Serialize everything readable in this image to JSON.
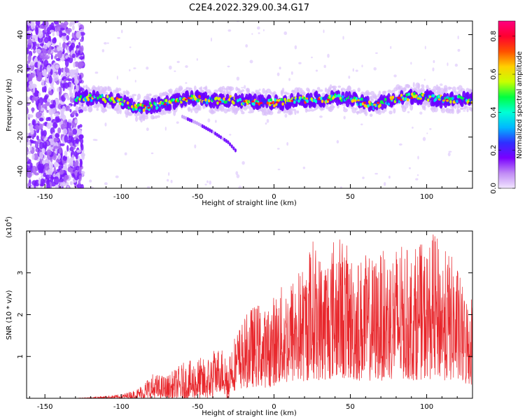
{
  "title": "C2E4.2022.329.00.34.G17",
  "chart_data": [
    {
      "type": "heatmap",
      "xlabel": "Height of straight line (km)",
      "ylabel": "Frequency (Hz)",
      "xlim": [
        -162,
        130
      ],
      "ylim": [
        -50,
        48
      ],
      "xticks": [
        -150,
        -100,
        -50,
        0,
        50,
        100
      ],
      "yticks": [
        -40,
        -20,
        0,
        20,
        40
      ],
      "colorbar": {
        "label": "Normalized spectral amplitude",
        "range": [
          0,
          0.88
        ],
        "ticks": [
          0.0,
          0.2,
          0.4,
          0.6,
          0.8
        ],
        "colormap": [
          "#f2e6ff",
          "#c08af5",
          "#7a00ff",
          "#2f2fff",
          "#00b8ff",
          "#00ffd5",
          "#00ff40",
          "#c8ff00",
          "#ffd000",
          "#ff5000",
          "#ff0030",
          "#ff0080"
        ]
      },
      "main_band": {
        "x_range": [
          -130,
          130
        ],
        "center_hz": [
          [
            -130,
            3
          ],
          [
            -110,
            2.5
          ],
          [
            -100,
            1
          ],
          [
            -90,
            -3
          ],
          [
            -80,
            -2
          ],
          [
            -70,
            0
          ],
          [
            -60,
            2
          ],
          [
            -50,
            2.5
          ],
          [
            -40,
            1.5
          ],
          [
            -30,
            2
          ],
          [
            -20,
            1
          ],
          [
            -10,
            0.5
          ],
          [
            0,
            0
          ],
          [
            10,
            1
          ],
          [
            20,
            2
          ],
          [
            30,
            2
          ],
          [
            40,
            3
          ],
          [
            50,
            2
          ],
          [
            60,
            0
          ],
          [
            65,
            -1.5
          ],
          [
            70,
            0
          ],
          [
            80,
            2
          ],
          [
            90,
            4
          ],
          [
            100,
            3
          ],
          [
            110,
            2
          ],
          [
            120,
            2
          ],
          [
            130,
            2
          ]
        ],
        "half_width_hz": 4
      },
      "diagonal_trace": [
        [
          -60,
          -8
        ],
        [
          -50,
          -12
        ],
        [
          -40,
          -17
        ],
        [
          -30,
          -23
        ],
        [
          -25,
          -28
        ]
      ],
      "scattered_region": {
        "x_range": [
          -162,
          -125
        ],
        "y_range": [
          -50,
          48
        ]
      }
    },
    {
      "type": "line",
      "xlabel": "Height of straight line (km)",
      "ylabel": "SNR (10 * v/v)",
      "y_multiplier": "(x10",
      "y_multiplier_exp": "4",
      "y_multiplier_close": ")",
      "xlim": [
        -162,
        130
      ],
      "ylim": [
        0,
        4
      ],
      "xticks": [
        -150,
        -100,
        -50,
        0,
        50,
        100
      ],
      "yticks": [
        1,
        2,
        3
      ],
      "series": [
        {
          "color": "#e8262b",
          "envelope": [
            [
              -162,
              0.0
            ],
            [
              -130,
              0.0
            ],
            [
              -120,
              0.03
            ],
            [
              -110,
              0.06
            ],
            [
              -100,
              0.1
            ],
            [
              -90,
              0.22
            ],
            [
              -80,
              0.6
            ],
            [
              -70,
              0.55
            ],
            [
              -60,
              0.85
            ],
            [
              -55,
              0.9
            ],
            [
              -50,
              1.0
            ],
            [
              -45,
              0.95
            ],
            [
              -40,
              1.2
            ],
            [
              -35,
              1.25
            ],
            [
              -30,
              1.15
            ],
            [
              -25,
              1.6
            ],
            [
              -20,
              1.9
            ],
            [
              -15,
              2.2
            ],
            [
              -10,
              2.3
            ],
            [
              -5,
              2.1
            ],
            [
              0,
              2.5
            ],
            [
              5,
              2.7
            ],
            [
              10,
              2.85
            ],
            [
              15,
              3.1
            ],
            [
              20,
              3.2
            ],
            [
              25,
              3.9
            ],
            [
              30,
              3.5
            ],
            [
              35,
              3.6
            ],
            [
              40,
              4.0
            ],
            [
              45,
              3.9
            ],
            [
              50,
              3.5
            ],
            [
              55,
              3.4
            ],
            [
              60,
              3.45
            ],
            [
              65,
              3.4
            ],
            [
              70,
              3.5
            ],
            [
              75,
              3.6
            ],
            [
              80,
              3.7
            ],
            [
              85,
              3.65
            ],
            [
              90,
              3.5
            ],
            [
              95,
              3.75
            ],
            [
              100,
              3.6
            ],
            [
              105,
              4.0
            ],
            [
              110,
              3.6
            ],
            [
              115,
              3.5
            ],
            [
              120,
              3.2
            ],
            [
              125,
              2.5
            ],
            [
              130,
              2.6
            ]
          ]
        }
      ]
    }
  ]
}
